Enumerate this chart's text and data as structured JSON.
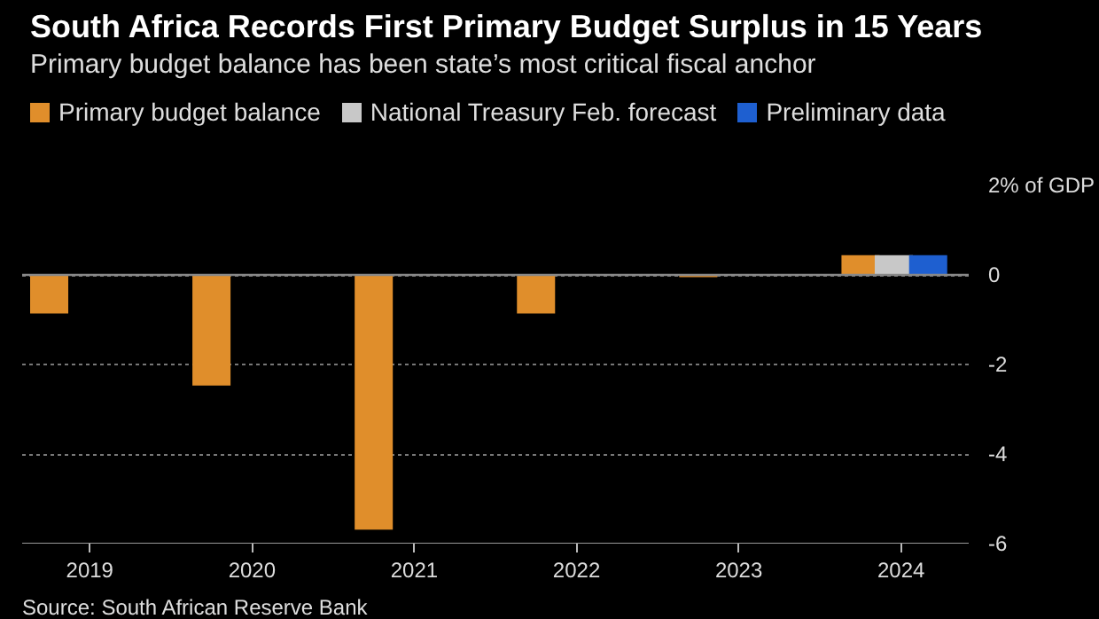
{
  "chart_data": {
    "type": "bar",
    "title": "South Africa Records First Primary Budget Surplus in 15 Years",
    "subtitle": "Primary budget balance has been state’s most critical fiscal anchor",
    "series": [
      {
        "name": "Primary budget balance",
        "color": "#e08e2b",
        "x": [
          "2018-10",
          "2019-10",
          "2020-10",
          "2021-10",
          "2022-10",
          "2023-10"
        ],
        "values": [
          -0.86,
          -2.47,
          -5.69,
          -0.86,
          -0.05,
          0.44
        ]
      },
      {
        "name": "National Treasury Feb. forecast",
        "color": "#c8c8c8",
        "x": [
          "2023-12-15"
        ],
        "values": [
          0.44
        ]
      },
      {
        "name": "Preliminary data",
        "color": "#1e5fd0",
        "x": [
          "2024-03"
        ],
        "values": [
          0.44
        ]
      }
    ],
    "xlim": [
      "2018-08",
      "2024-06"
    ],
    "xticks": [
      "2019",
      "2020",
      "2021",
      "2022",
      "2023",
      "2024"
    ],
    "ylim": [
      -6,
      2
    ],
    "yticks": [
      {
        "value": 2,
        "label": "2% of GDP"
      },
      0,
      -2,
      -4,
      -6
    ],
    "ref_lines": [
      {
        "axis": "y",
        "value": 0,
        "color": "#888888"
      }
    ],
    "grid": "y",
    "legend": "top left",
    "annotations": [
      "Source: South African Reserve Bank"
    ]
  }
}
